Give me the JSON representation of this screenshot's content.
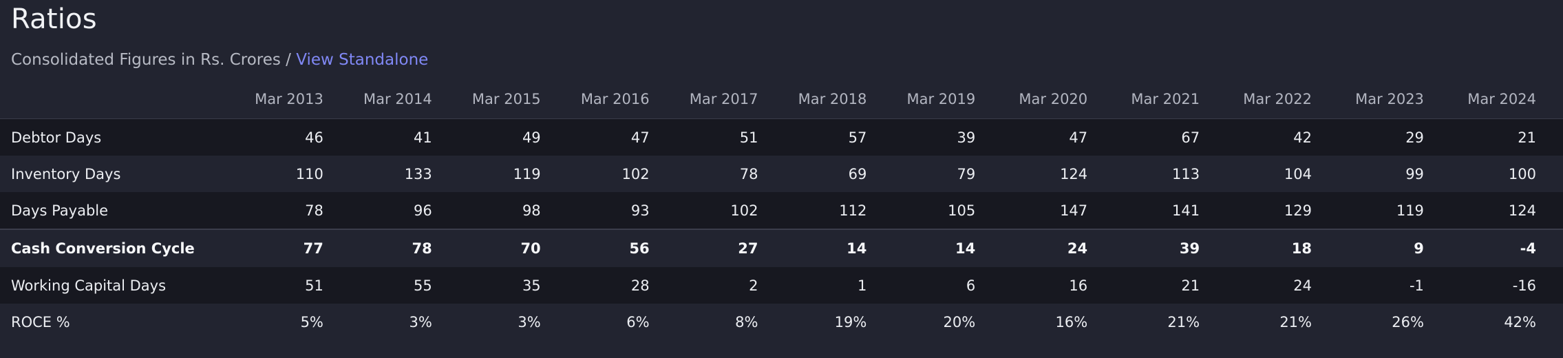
{
  "section": {
    "title": "Ratios",
    "subtitle_text": "Consolidated Figures in Rs. Crores / ",
    "subtitle_link": "View Standalone"
  },
  "table": {
    "corner_header": "",
    "years": [
      "Mar 2013",
      "Mar 2014",
      "Mar 2015",
      "Mar 2016",
      "Mar 2017",
      "Mar 2018",
      "Mar 2019",
      "Mar 2020",
      "Mar 2021",
      "Mar 2022",
      "Mar 2023",
      "Mar 2024"
    ],
    "rows": [
      {
        "label": "Debtor Days",
        "bold": false,
        "values": [
          "46",
          "41",
          "49",
          "47",
          "51",
          "57",
          "39",
          "47",
          "67",
          "42",
          "29",
          "21"
        ]
      },
      {
        "label": "Inventory Days",
        "bold": false,
        "values": [
          "110",
          "133",
          "119",
          "102",
          "78",
          "69",
          "79",
          "124",
          "113",
          "104",
          "99",
          "100"
        ]
      },
      {
        "label": "Days Payable",
        "bold": false,
        "values": [
          "78",
          "96",
          "98",
          "93",
          "102",
          "112",
          "105",
          "147",
          "141",
          "129",
          "119",
          "124"
        ]
      },
      {
        "label": "Cash Conversion Cycle",
        "bold": true,
        "values": [
          "77",
          "78",
          "70",
          "56",
          "27",
          "14",
          "14",
          "24",
          "39",
          "18",
          "9",
          "-4"
        ]
      },
      {
        "label": "Working Capital Days",
        "bold": false,
        "values": [
          "51",
          "55",
          "35",
          "28",
          "2",
          "1",
          "6",
          "16",
          "21",
          "24",
          "-1",
          "-16"
        ]
      },
      {
        "label": "ROCE %",
        "bold": false,
        "values": [
          "5%",
          "3%",
          "3%",
          "6%",
          "8%",
          "19%",
          "20%",
          "16%",
          "21%",
          "21%",
          "26%",
          "42%"
        ]
      }
    ]
  },
  "colors": {
    "background": "#222430",
    "stripe": "#171820",
    "link": "#8088f5",
    "text": "#eceef2",
    "muted": "#b3b6c1"
  }
}
